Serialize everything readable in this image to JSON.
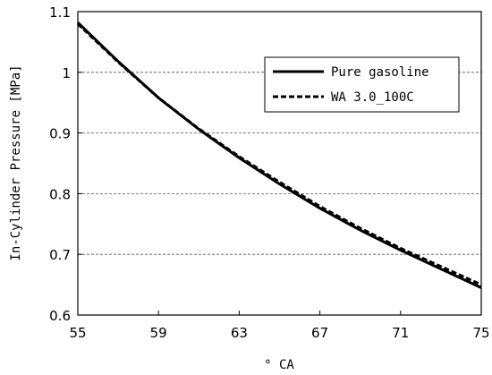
{
  "chart_data": {
    "type": "line",
    "xlabel": "° CA",
    "ylabel": "In-Cylinder Pressure [MPa]",
    "xlim": [
      55,
      75
    ],
    "ylim": [
      0.6,
      1.1
    ],
    "x_ticks": [
      "55",
      "59",
      "63",
      "67",
      "71",
      "75"
    ],
    "y_ticks": [
      "0.6",
      "0.7",
      "0.8",
      "0.9",
      "1",
      "1.1"
    ],
    "grid": "horizontal dashed",
    "legend_position": "top-right",
    "series": [
      {
        "name": "Pure gasoline",
        "style": "solid",
        "color": "#000000",
        "x": [
          55,
          57,
          59,
          61,
          63,
          65,
          67,
          69,
          71,
          73,
          75
        ],
        "y": [
          1.082,
          1.018,
          0.958,
          0.906,
          0.859,
          0.816,
          0.776,
          0.74,
          0.707,
          0.676,
          0.645
        ]
      },
      {
        "name": "WA 3.0_100C",
        "style": "dashed",
        "color": "#000000",
        "x": [
          55,
          57,
          59,
          61,
          63,
          65,
          67,
          69,
          71,
          73,
          75
        ],
        "y": [
          1.08,
          1.017,
          0.958,
          0.907,
          0.861,
          0.819,
          0.779,
          0.743,
          0.71,
          0.68,
          0.65
        ]
      }
    ]
  }
}
